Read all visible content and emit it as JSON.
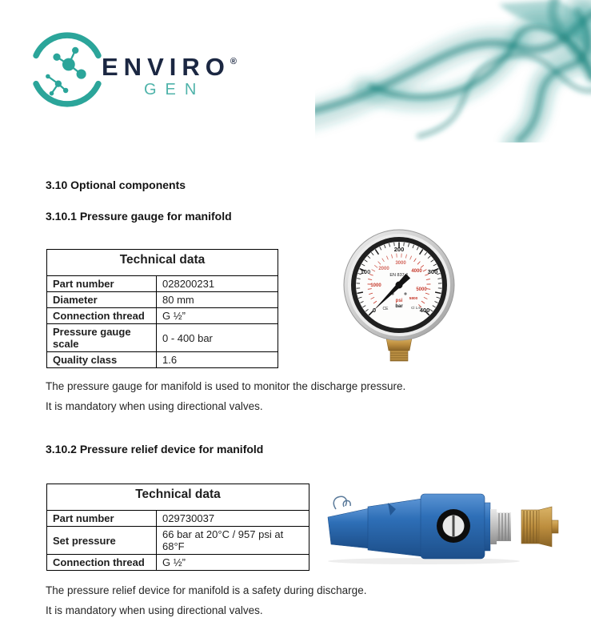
{
  "logo": {
    "brand": "ENVIRO",
    "registered": "®",
    "sub": "GEN"
  },
  "headings": {
    "section": "3.10 Optional components",
    "sub1": "3.10.1 Pressure gauge for manifold",
    "sub2": "3.10.2 Pressure relief device for manifold"
  },
  "table1": {
    "title": "Technical data",
    "rows": [
      {
        "label": "Part number",
        "value": "028200231"
      },
      {
        "label": "Diameter",
        "value": "80 mm"
      },
      {
        "label": "Connection thread",
        "value": "G ½”"
      },
      {
        "label": "Pressure gauge scale",
        "value": "0 - 400 bar"
      },
      {
        "label": "Quality class",
        "value": "1.6"
      }
    ]
  },
  "para1": {
    "line1": "The pressure gauge for manifold is used to monitor the discharge pressure.",
    "line2": "It is mandatory when using directional valves."
  },
  "table2": {
    "title": "Technical data",
    "rows": [
      {
        "label": "Part number",
        "value": "029730037"
      },
      {
        "label": "Set pressure",
        "value": "66 bar at 20°C / 957 psi at 68°F"
      },
      {
        "label": "Connection thread",
        "value": "G ½”"
      }
    ]
  },
  "para2": {
    "line1": "The pressure relief device for manifold is a safety during discharge.",
    "line2": "It is mandatory when using directional valves."
  },
  "gauge": {
    "standard": "EN 837-1",
    "bar_labels": [
      "0",
      "100",
      "200",
      "300",
      "400"
    ],
    "psi_labels": [
      "1000",
      "2000",
      "3000",
      "4000",
      "5000"
    ],
    "psi_max": "5800",
    "psi_unit": "psi",
    "bar_unit": "bar",
    "class_label": "Cl 1.6",
    "ce_mark": "CE"
  },
  "colors": {
    "teal": "#2BA59A",
    "navy": "#1B2742",
    "valve_blue": "#2E6FB7",
    "brass": "#BD8E3E",
    "scale_red": "#C63A2C"
  }
}
